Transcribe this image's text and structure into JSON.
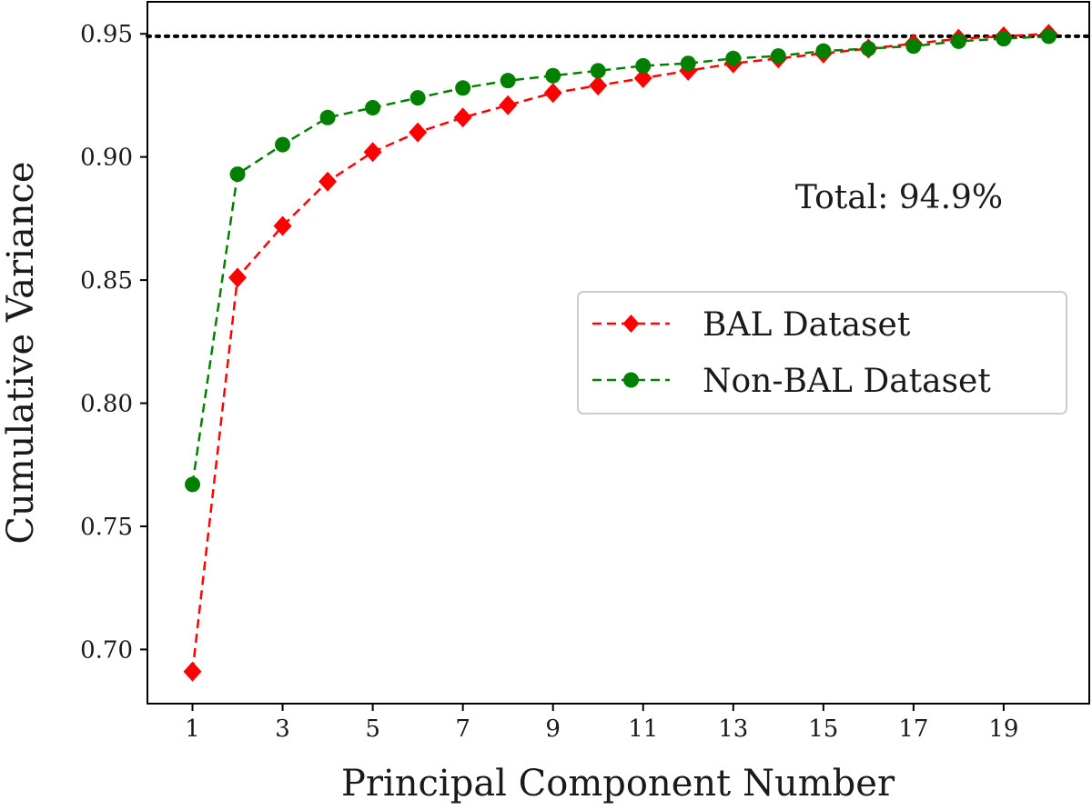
{
  "chart_data": {
    "type": "line",
    "xlabel": "Principal Component Number",
    "ylabel": "Cumulative Variance",
    "x": [
      1,
      2,
      3,
      4,
      5,
      6,
      7,
      8,
      9,
      10,
      11,
      12,
      13,
      14,
      15,
      16,
      17,
      18,
      19,
      20
    ],
    "xlim": [
      0.0,
      20.9
    ],
    "ylim": [
      0.678,
      0.963
    ],
    "xticks": [
      1,
      3,
      5,
      7,
      9,
      11,
      13,
      15,
      17,
      19
    ],
    "xtick_labels": [
      "1",
      "3",
      "5",
      "7",
      "9",
      "11",
      "13",
      "15",
      "17",
      "19"
    ],
    "yticks": [
      0.7,
      0.75,
      0.8,
      0.85,
      0.9,
      0.95
    ],
    "ytick_labels": [
      "0.70",
      "0.75",
      "0.80",
      "0.85",
      "0.90",
      "0.95"
    ],
    "grid": false,
    "legend_position": "center-right",
    "series": [
      {
        "name": "BAL Dataset",
        "color": "#ff0000",
        "marker": "diamond",
        "linestyle": "dashed",
        "values": [
          0.691,
          0.851,
          0.872,
          0.89,
          0.902,
          0.91,
          0.916,
          0.921,
          0.926,
          0.929,
          0.932,
          0.935,
          0.938,
          0.94,
          0.942,
          0.944,
          0.946,
          0.948,
          0.949,
          0.95
        ]
      },
      {
        "name": "Non-BAL Dataset",
        "color": "#008000",
        "marker": "circle",
        "linestyle": "dashed",
        "values": [
          0.767,
          0.893,
          0.905,
          0.916,
          0.92,
          0.924,
          0.928,
          0.931,
          0.933,
          0.935,
          0.937,
          0.938,
          0.94,
          0.941,
          0.943,
          0.944,
          0.945,
          0.947,
          0.948,
          0.949
        ]
      }
    ],
    "reference_line": {
      "y": 0.949,
      "style": "dotted",
      "color": "#000000"
    },
    "annotations": [
      {
        "text": "Total: 94.9%"
      }
    ]
  }
}
